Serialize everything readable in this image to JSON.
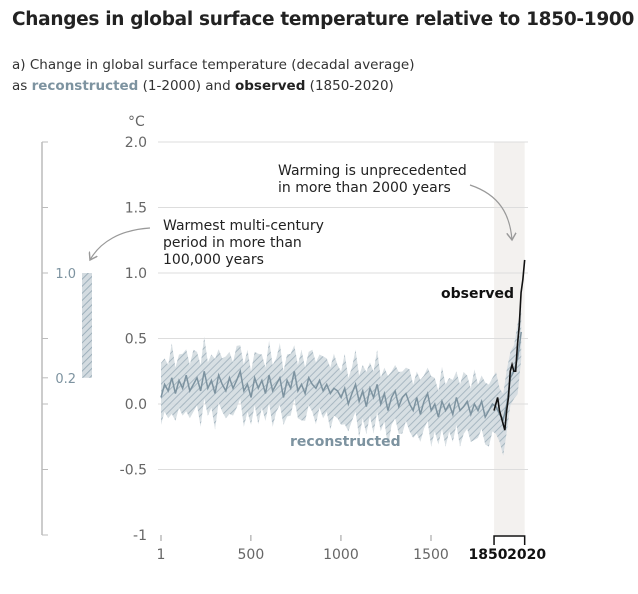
{
  "title": "Changes in global surface temperature relative to 1850-1900",
  "subtitle": {
    "line1": "a) Change in global surface temperature (decadal average)",
    "line2_pre": "as ",
    "line2_recon": "reconstructed",
    "line2_mid": " (1-2000) and ",
    "line2_obs": "observed",
    "line2_post": " (1850-2020)"
  },
  "colors": {
    "reconstructed": "#7d93a0",
    "observed": "#111111",
    "shade": "#f3f1ef",
    "grid": "#dddddd"
  },
  "chart_data": {
    "type": "line",
    "title": "Change in global surface temperature (decadal average)",
    "ylabel": "°C",
    "ylim": [
      -1,
      2
    ],
    "yticks": [
      2.0,
      1.5,
      1.0,
      0.5,
      0.0,
      -0.5,
      -1
    ],
    "ytick_labels": [
      "2.0",
      "1.5",
      "1.0",
      "0.5",
      "0.0",
      "-0.5",
      "-1"
    ],
    "xlim": [
      1,
      2020
    ],
    "xticks": [
      1,
      500,
      1000,
      1500
    ],
    "xtick_labels": [
      "1",
      "500",
      "1000",
      "1500"
    ],
    "xticks_bold": [
      1850,
      2020
    ],
    "xtick_bold_labels": [
      "1850",
      "2020"
    ],
    "shaded_range": [
      1850,
      2020
    ],
    "series": [
      {
        "name": "reconstructed",
        "label": "reconstructed",
        "x_start": 1,
        "x_step": 20,
        "uncertainty_halfwidth": 0.22,
        "values": [
          0.05,
          0.15,
          0.1,
          0.2,
          0.08,
          0.18,
          0.12,
          0.22,
          0.1,
          0.15,
          0.2,
          0.1,
          0.25,
          0.12,
          0.18,
          0.08,
          0.22,
          0.15,
          0.1,
          0.2,
          0.12,
          0.18,
          0.25,
          0.1,
          0.15,
          0.05,
          0.2,
          0.12,
          0.18,
          0.08,
          0.22,
          0.1,
          0.15,
          0.2,
          0.05,
          0.18,
          0.12,
          0.25,
          0.1,
          0.15,
          0.08,
          0.2,
          0.15,
          0.12,
          0.18,
          0.1,
          0.15,
          0.08,
          0.12,
          0.1,
          0.05,
          0.12,
          0.0,
          0.08,
          0.15,
          0.02,
          0.1,
          -0.02,
          0.12,
          0.05,
          0.15,
          0.0,
          0.08,
          -0.05,
          0.05,
          0.1,
          -0.02,
          0.05,
          0.08,
          0.0,
          -0.05,
          0.05,
          -0.08,
          0.02,
          0.08,
          -0.05,
          0.0,
          -0.1,
          0.02,
          -0.05,
          0.0,
          -0.08,
          0.05,
          -0.05,
          -0.02,
          0.02,
          -0.08,
          0.0,
          -0.05,
          0.02,
          -0.1,
          -0.05,
          0.0,
          -0.02,
          -0.08,
          -0.12,
          0.0,
          0.2,
          0.25,
          0.35,
          0.55
        ]
      },
      {
        "name": "observed",
        "label": "observed",
        "x": [
          1850,
          1860,
          1870,
          1880,
          1890,
          1900,
          1910,
          1920,
          1930,
          1940,
          1950,
          1960,
          1970,
          1980,
          1990,
          2000,
          2010,
          2020
        ],
        "values": [
          -0.05,
          0.0,
          0.05,
          -0.05,
          -0.1,
          -0.15,
          -0.2,
          -0.05,
          0.05,
          0.25,
          0.3,
          0.25,
          0.25,
          0.45,
          0.6,
          0.85,
          0.95,
          1.1
        ]
      }
    ],
    "inset": {
      "name": "Warmest multi-century period in more than 100,000 years",
      "range": [
        0.2,
        1.0
      ],
      "labels": [
        "1.0",
        "0.2"
      ]
    },
    "annotations": [
      {
        "text_lines": [
          "Warming is unprecedented",
          "in more than 2000 years"
        ]
      },
      {
        "text_lines": [
          "Warmest multi-century",
          "period in more than",
          "100,000 years"
        ]
      }
    ]
  }
}
